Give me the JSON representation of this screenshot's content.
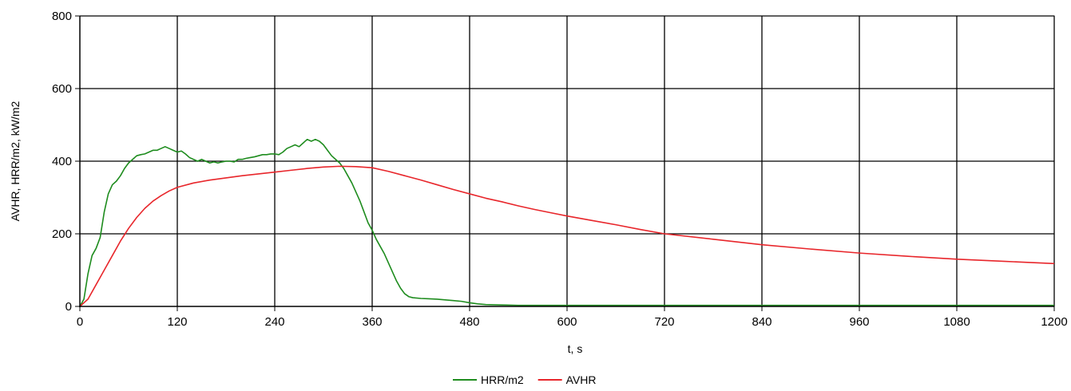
{
  "chart_data": {
    "type": "line",
    "title": "",
    "xlabel": "t, s",
    "ylabel": "AVHR, HRR/m2, kW/m2",
    "xlim": [
      0,
      1200
    ],
    "ylim": [
      0,
      800
    ],
    "x_ticks": [
      0,
      120,
      240,
      360,
      480,
      600,
      720,
      840,
      960,
      1080,
      1200
    ],
    "y_ticks": [
      0,
      200,
      400,
      600,
      800
    ],
    "x_tick_labels": [
      "0",
      "120",
      "240",
      "360",
      "480",
      "600",
      "720",
      "840",
      "960",
      "1080",
      "1200"
    ],
    "y_tick_labels": [
      "0",
      "200",
      "400",
      "600",
      "800"
    ],
    "grid": true,
    "legend_position": "bottom-center",
    "series": [
      {
        "name": "HRR/m2",
        "color": "#1e8c1e",
        "points": [
          [
            0,
            0
          ],
          [
            5,
            20
          ],
          [
            10,
            90
          ],
          [
            15,
            140
          ],
          [
            20,
            160
          ],
          [
            25,
            190
          ],
          [
            30,
            260
          ],
          [
            35,
            310
          ],
          [
            40,
            335
          ],
          [
            45,
            345
          ],
          [
            50,
            360
          ],
          [
            55,
            380
          ],
          [
            60,
            395
          ],
          [
            65,
            405
          ],
          [
            70,
            415
          ],
          [
            75,
            418
          ],
          [
            80,
            420
          ],
          [
            85,
            425
          ],
          [
            90,
            430
          ],
          [
            95,
            430
          ],
          [
            100,
            435
          ],
          [
            105,
            440
          ],
          [
            110,
            435
          ],
          [
            115,
            430
          ],
          [
            120,
            425
          ],
          [
            125,
            428
          ],
          [
            130,
            420
          ],
          [
            135,
            410
          ],
          [
            140,
            405
          ],
          [
            145,
            400
          ],
          [
            150,
            405
          ],
          [
            155,
            400
          ],
          [
            160,
            395
          ],
          [
            165,
            398
          ],
          [
            170,
            395
          ],
          [
            175,
            398
          ],
          [
            180,
            400
          ],
          [
            185,
            400
          ],
          [
            190,
            398
          ],
          [
            195,
            405
          ],
          [
            200,
            405
          ],
          [
            205,
            408
          ],
          [
            210,
            410
          ],
          [
            215,
            412
          ],
          [
            220,
            415
          ],
          [
            225,
            418
          ],
          [
            230,
            418
          ],
          [
            235,
            420
          ],
          [
            240,
            420
          ],
          [
            245,
            418
          ],
          [
            250,
            425
          ],
          [
            255,
            435
          ],
          [
            260,
            440
          ],
          [
            265,
            445
          ],
          [
            270,
            440
          ],
          [
            275,
            450
          ],
          [
            280,
            460
          ],
          [
            285,
            455
          ],
          [
            290,
            460
          ],
          [
            295,
            455
          ],
          [
            300,
            445
          ],
          [
            305,
            430
          ],
          [
            310,
            415
          ],
          [
            315,
            405
          ],
          [
            320,
            395
          ],
          [
            325,
            380
          ],
          [
            330,
            360
          ],
          [
            335,
            340
          ],
          [
            340,
            315
          ],
          [
            345,
            290
          ],
          [
            350,
            260
          ],
          [
            355,
            230
          ],
          [
            360,
            210
          ],
          [
            365,
            185
          ],
          [
            370,
            165
          ],
          [
            375,
            145
          ],
          [
            380,
            120
          ],
          [
            385,
            95
          ],
          [
            390,
            70
          ],
          [
            395,
            50
          ],
          [
            400,
            35
          ],
          [
            405,
            27
          ],
          [
            410,
            24
          ],
          [
            420,
            22
          ],
          [
            430,
            21
          ],
          [
            440,
            20
          ],
          [
            450,
            18
          ],
          [
            460,
            16
          ],
          [
            470,
            14
          ],
          [
            480,
            10
          ],
          [
            490,
            7
          ],
          [
            500,
            5
          ],
          [
            520,
            4
          ],
          [
            540,
            3
          ],
          [
            600,
            3
          ],
          [
            660,
            3
          ],
          [
            720,
            3
          ],
          [
            780,
            3
          ],
          [
            840,
            3
          ],
          [
            900,
            3
          ],
          [
            960,
            3
          ],
          [
            1020,
            3
          ],
          [
            1080,
            3
          ],
          [
            1140,
            3
          ],
          [
            1200,
            3
          ]
        ]
      },
      {
        "name": "AVHR",
        "color": "#e8262b",
        "points": [
          [
            0,
            0
          ],
          [
            10,
            20
          ],
          [
            20,
            60
          ],
          [
            30,
            100
          ],
          [
            40,
            140
          ],
          [
            50,
            180
          ],
          [
            60,
            215
          ],
          [
            70,
            245
          ],
          [
            80,
            270
          ],
          [
            90,
            290
          ],
          [
            100,
            305
          ],
          [
            110,
            318
          ],
          [
            120,
            328
          ],
          [
            140,
            340
          ],
          [
            160,
            348
          ],
          [
            180,
            354
          ],
          [
            200,
            360
          ],
          [
            220,
            365
          ],
          [
            240,
            370
          ],
          [
            260,
            375
          ],
          [
            280,
            380
          ],
          [
            300,
            384
          ],
          [
            320,
            386
          ],
          [
            340,
            385
          ],
          [
            360,
            382
          ],
          [
            380,
            372
          ],
          [
            400,
            360
          ],
          [
            420,
            348
          ],
          [
            440,
            335
          ],
          [
            460,
            322
          ],
          [
            480,
            310
          ],
          [
            500,
            298
          ],
          [
            520,
            288
          ],
          [
            540,
            277
          ],
          [
            560,
            267
          ],
          [
            580,
            258
          ],
          [
            600,
            249
          ],
          [
            630,
            237
          ],
          [
            660,
            225
          ],
          [
            690,
            212
          ],
          [
            720,
            200
          ],
          [
            780,
            185
          ],
          [
            840,
            170
          ],
          [
            900,
            158
          ],
          [
            960,
            147
          ],
          [
            1020,
            138
          ],
          [
            1080,
            130
          ],
          [
            1140,
            124
          ],
          [
            1200,
            118
          ]
        ]
      }
    ]
  }
}
